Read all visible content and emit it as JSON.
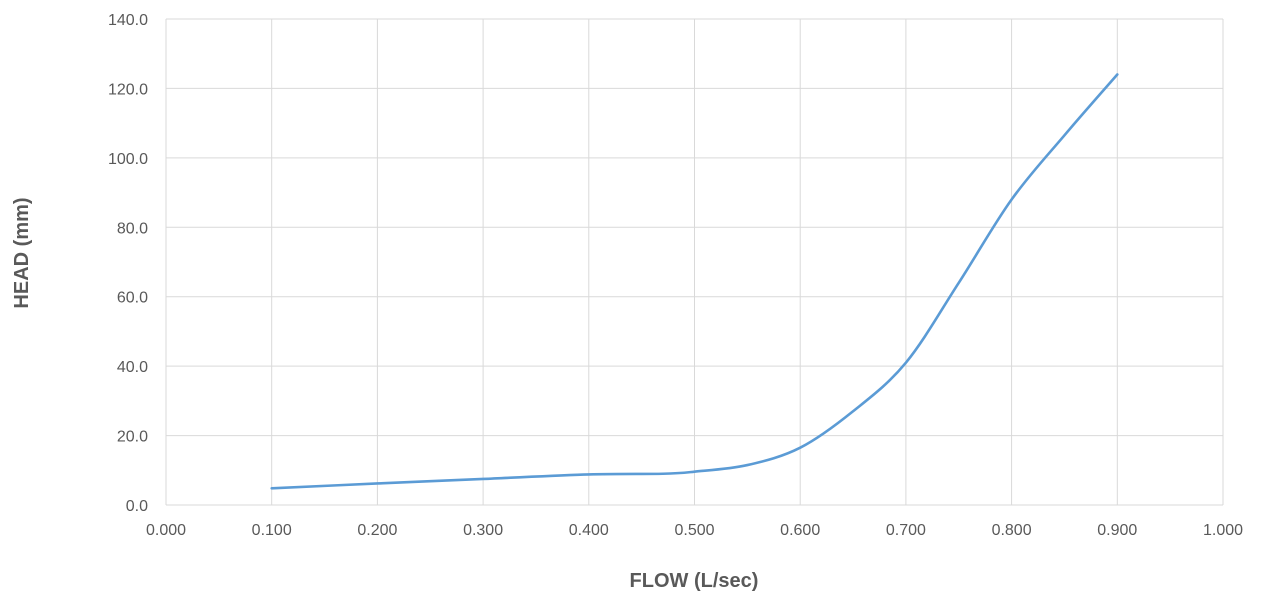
{
  "chart_data": {
    "type": "line",
    "title": "",
    "xlabel": "FLOW (L/sec)",
    "ylabel": "HEAD (mm)",
    "xlim": [
      0,
      1
    ],
    "ylim": [
      0,
      140
    ],
    "x_ticks": [
      "0.000",
      "0.100",
      "0.200",
      "0.300",
      "0.400",
      "0.500",
      "0.600",
      "0.700",
      "0.800",
      "0.900",
      "1.000"
    ],
    "y_ticks": [
      "0.0",
      "20.0",
      "40.0",
      "60.0",
      "80.0",
      "100.0",
      "120.0",
      "140.0"
    ],
    "grid": true,
    "legend": "none",
    "series": [
      {
        "color": "#5b9bd5",
        "x": [
          0.1,
          0.2,
          0.3,
          0.4,
          0.47,
          0.5,
          0.55,
          0.6,
          0.65,
          0.7,
          0.75,
          0.8,
          0.85,
          0.9
        ],
        "y": [
          4.8,
          6.2,
          7.5,
          8.8,
          9.0,
          9.6,
          11.5,
          16.5,
          27.0,
          41.0,
          64.0,
          88.0,
          106.5,
          124.0
        ]
      }
    ]
  }
}
